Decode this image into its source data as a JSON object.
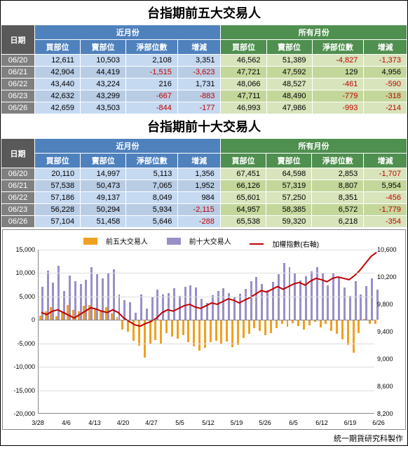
{
  "title1": "台指期前五大交易人",
  "title2": "台指期前十大交易人",
  "hdr": {
    "date": "日期",
    "near": "近月份",
    "all": "所有月份",
    "buy": "買部位",
    "sell": "賣部位",
    "net": "淨部位數",
    "chg": "增減"
  },
  "t1": [
    {
      "d": "06/20",
      "nb": "12,611",
      "ns": "10,503",
      "nn": "2,108",
      "nc": "3,351",
      "ab": "46,562",
      "as": "51,389",
      "an": "-4,827",
      "ac": "-1,373"
    },
    {
      "d": "06/21",
      "nb": "42,904",
      "ns": "44,419",
      "nn": "-1,515",
      "nc": "-3,623",
      "ab": "47,721",
      "as": "47,592",
      "an": "129",
      "ac": "4,956"
    },
    {
      "d": "06/22",
      "nb": "43,440",
      "ns": "43,224",
      "nn": "216",
      "nc": "1,731",
      "ab": "48,066",
      "as": "48,527",
      "an": "-461",
      "ac": "-590"
    },
    {
      "d": "06/23",
      "nb": "42,632",
      "ns": "43,299",
      "nn": "-667",
      "nc": "-883",
      "ab": "47,711",
      "as": "48,490",
      "an": "-779",
      "ac": "-318"
    },
    {
      "d": "06/26",
      "nb": "42,659",
      "ns": "43,503",
      "nn": "-844",
      "nc": "-177",
      "ab": "46,993",
      "as": "47,986",
      "an": "-993",
      "ac": "-214"
    }
  ],
  "t2": [
    {
      "d": "06/20",
      "nb": "20,110",
      "ns": "14,997",
      "nn": "5,113",
      "nc": "1,356",
      "ab": "67,451",
      "as": "64,598",
      "an": "2,853",
      "ac": "-1,707"
    },
    {
      "d": "06/21",
      "nb": "57,538",
      "ns": "50,473",
      "nn": "7,065",
      "nc": "1,952",
      "ab": "66,126",
      "as": "57,319",
      "an": "8,807",
      "ac": "5,954"
    },
    {
      "d": "06/22",
      "nb": "57,186",
      "ns": "49,137",
      "nn": "8,049",
      "nc": "984",
      "ab": "65,601",
      "as": "57,250",
      "an": "8,351",
      "ac": "-456"
    },
    {
      "d": "06/23",
      "nb": "56,228",
      "ns": "50,294",
      "nn": "5,934",
      "nc": "-2,115",
      "ab": "64,957",
      "as": "58,385",
      "an": "6,572",
      "ac": "-1,779"
    },
    {
      "d": "06/26",
      "nb": "57,104",
      "ns": "51,458",
      "nn": "5,646",
      "nc": "-288",
      "ab": "65,538",
      "as": "59,320",
      "an": "6,218",
      "ac": "-354"
    }
  ],
  "legend": {
    "a": "前五大交易人",
    "b": "前十大交易人",
    "c": "加權指數(右軸)"
  },
  "colors": {
    "a": "#f0a020",
    "b": "#9a8fc7",
    "c": "#c00000",
    "grid": "#ddd"
  },
  "chart": {
    "yl": {
      "min": -20000,
      "max": 15000,
      "step": 5000
    },
    "yr": {
      "min": 8200,
      "max": 10600,
      "step": 400
    },
    "xlabels": [
      "3/28",
      "4/6",
      "4/13",
      "4/20",
      "4/27",
      "5/5",
      "5/12",
      "5/19",
      "5/26",
      "6/5",
      "6/12",
      "6/19",
      "6/26"
    ],
    "n": 62,
    "top5": [
      1000,
      1800,
      2700,
      800,
      1600,
      3200,
      2200,
      1900,
      3000,
      3200,
      2400,
      1800,
      2700,
      1400,
      600,
      -2000,
      -2500,
      -4500,
      -5500,
      -8000,
      -5200,
      -4300,
      -5000,
      -2800,
      -3600,
      -4000,
      -3200,
      -4800,
      -5700,
      -6500,
      -6000,
      -4800,
      -4500,
      -5200,
      -4600,
      -5800,
      -5400,
      -3800,
      -2900,
      -1700,
      -2300,
      -3200,
      -2800,
      -1700,
      -900,
      -1500,
      -700,
      -1300,
      -2000,
      -1200,
      -400,
      -1600,
      -800,
      -2300,
      -3000,
      -4200,
      -5400,
      -7000,
      -2800,
      200,
      -800,
      -900
    ],
    "top10": [
      7000,
      10500,
      8000,
      11500,
      6200,
      9500,
      8300,
      7700,
      8500,
      11200,
      9700,
      8800,
      10000,
      10800,
      5400,
      4300,
      3800,
      1600,
      5500,
      2400,
      4800,
      6400,
      5400,
      5800,
      6700,
      5200,
      7100,
      7300,
      6900,
      4600,
      3700,
      5300,
      6200,
      6700,
      5700,
      4900,
      5600,
      6600,
      8300,
      9200,
      7600,
      6300,
      8100,
      9700,
      12200,
      11200,
      10100,
      8400,
      9300,
      10300,
      11300,
      10100,
      7400,
      10000,
      9000,
      6900,
      5200,
      8200,
      5400,
      7200,
      8800,
      6400
    ],
    "index": [
      9680,
      9650,
      9700,
      9720,
      9680,
      9640,
      9600,
      9650,
      9700,
      9750,
      9730,
      9700,
      9680,
      9720,
      9680,
      9600,
      9550,
      9500,
      9480,
      9520,
      9550,
      9600,
      9680,
      9720,
      9700,
      9740,
      9780,
      9800,
      9760,
      9740,
      9780,
      9820,
      9800,
      9840,
      9880,
      9860,
      9820,
      9860,
      9900,
      9950,
      10000,
      9980,
      10020,
      10060,
      10020,
      10060,
      10100,
      10120,
      10080,
      10140,
      10180,
      10160,
      10130,
      10180,
      10200,
      10180,
      10160,
      10220,
      10300,
      10400,
      10500,
      10560
    ]
  },
  "footer": "統一期貨研究科製作"
}
